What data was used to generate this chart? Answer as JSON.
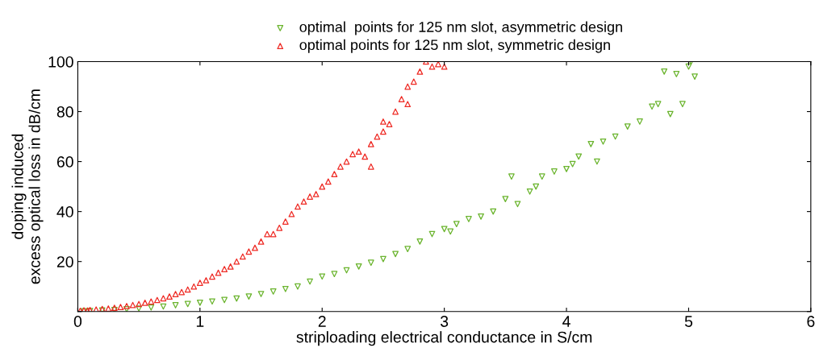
{
  "chart_data": {
    "type": "scatter",
    "xlabel": "striploading electrical conductance in S/cm",
    "ylabel": "doping induced\nexcess optical loss in dB/cm",
    "xlim": [
      0,
      6
    ],
    "xticks": [
      0,
      1,
      2,
      3,
      4,
      5,
      6
    ],
    "ylim": [
      0,
      100
    ],
    "yticks": [
      {
        "value": 0,
        "label": null
      },
      20,
      40,
      60,
      80,
      100
    ],
    "legend": "top",
    "grid": false,
    "series": [
      {
        "name": "optimal  points for 125 nm slot, asymmetric design",
        "color": "#6ab42d",
        "marker": "triangle_down",
        "x": [
          0.05,
          0.1,
          0.2,
          0.3,
          0.4,
          0.5,
          0.6,
          0.7,
          0.8,
          0.9,
          1.0,
          1.1,
          1.2,
          1.3,
          1.4,
          1.5,
          1.6,
          1.7,
          1.8,
          1.9,
          2.0,
          2.1,
          2.2,
          2.3,
          2.4,
          2.5,
          2.6,
          2.7,
          2.8,
          2.9,
          3.0,
          3.05,
          3.1,
          3.2,
          3.3,
          3.4,
          3.5,
          3.55,
          3.6,
          3.7,
          3.75,
          3.8,
          3.9,
          4.0,
          4.05,
          4.1,
          4.2,
          4.25,
          4.3,
          4.4,
          4.5,
          4.6,
          4.7,
          4.75,
          4.8,
          4.85,
          4.9,
          4.95,
          5.0,
          5.02,
          5.05
        ],
        "values": [
          0.1,
          0.2,
          0.4,
          0.6,
          0.9,
          1.2,
          1.6,
          2.0,
          2.5,
          3.0,
          3.5,
          4.0,
          4.6,
          5.2,
          6.0,
          7.0,
          8.0,
          9.0,
          10,
          12,
          14,
          15,
          16.5,
          18,
          19.5,
          21,
          23,
          25,
          28,
          31,
          33,
          32,
          35,
          37,
          38,
          40,
          45,
          54,
          43,
          48,
          50,
          54,
          56,
          57,
          59,
          62,
          67,
          60,
          68,
          70,
          74,
          76,
          82,
          83,
          96,
          79,
          95,
          83,
          98,
          100,
          94
        ]
      },
      {
        "name": "optimal points for 125 nm slot, symmetric design",
        "color": "#ee2a24",
        "marker": "triangle",
        "x": [
          0.02,
          0.05,
          0.08,
          0.1,
          0.15,
          0.2,
          0.25,
          0.3,
          0.35,
          0.4,
          0.45,
          0.5,
          0.55,
          0.6,
          0.65,
          0.7,
          0.75,
          0.8,
          0.85,
          0.9,
          0.95,
          1.0,
          1.05,
          1.1,
          1.15,
          1.2,
          1.25,
          1.3,
          1.35,
          1.4,
          1.45,
          1.5,
          1.55,
          1.6,
          1.65,
          1.7,
          1.75,
          1.8,
          1.85,
          1.9,
          1.95,
          2.0,
          2.05,
          2.1,
          2.15,
          2.2,
          2.25,
          2.3,
          2.35,
          2.4,
          2.4,
          2.45,
          2.5,
          2.5,
          2.55,
          2.6,
          2.65,
          2.7,
          2.7,
          2.75,
          2.8,
          2.85,
          2.9,
          2.95,
          3.0
        ],
        "values": [
          0.3,
          0.5,
          0.4,
          0.6,
          0.8,
          1.0,
          1.2,
          1.5,
          1.8,
          2.2,
          2.6,
          3.0,
          3.5,
          4.0,
          4.6,
          5.3,
          6.0,
          7.0,
          7.8,
          8.8,
          10,
          11.5,
          12.5,
          14,
          15.5,
          17,
          18,
          20,
          22,
          24,
          25.5,
          28,
          31,
          31,
          33.5,
          36,
          39,
          42,
          44,
          46,
          47,
          50,
          52,
          55,
          58,
          60,
          63,
          64,
          62,
          67,
          58,
          70,
          72,
          76,
          75,
          80,
          85,
          90,
          83,
          92,
          96,
          100,
          98,
          99,
          98
        ]
      }
    ]
  }
}
